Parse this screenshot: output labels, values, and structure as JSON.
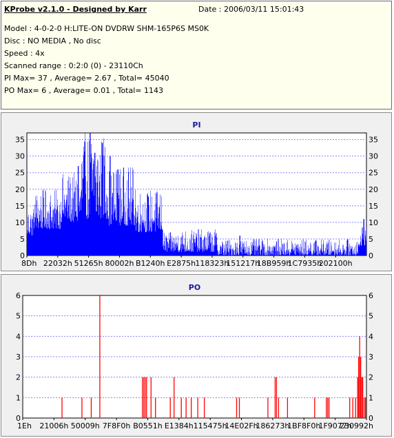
{
  "header": {
    "title": "KProbe v2.1.0 - Designed by Karr",
    "date": "Date : 2006/03/11 15:01:43",
    "model": "Model : 4-0-2-0 H:LITE-ON DVDRW SHM-165P6S MS0K",
    "disc": "Disc : NO MEDIA , No disc",
    "speed": "Speed : 4x",
    "scanned_range": "Scanned range : 0:2:0 (0) - 23110Ch",
    "pi_stats": "PI Max= 37 , Average= 2.67 , Total= 45040",
    "po_stats": "PO Max= 6 , Average= 0.01 , Total= 1143"
  },
  "colors": {
    "pi_series": "#0000ff",
    "po_series": "#ff0000",
    "plot_background": "#ffffff",
    "grid": "#8080ff",
    "title": "#1818a0"
  },
  "chart_data": [
    {
      "type": "bar",
      "title": "PI",
      "xlabel": "",
      "ylabel": "",
      "ylim": [
        0,
        37
      ],
      "yticks": [
        0,
        5,
        10,
        15,
        20,
        25,
        30,
        35
      ],
      "right_axis": true,
      "grid": "horizontal dashed",
      "xticks": [
        "8Dh",
        "22032h",
        "51265h",
        "80002h",
        "B1240h",
        "E2875h",
        "118323h",
        "151217h",
        "18B959h",
        "1C7935h",
        "202100h"
      ],
      "x_range": [
        0,
        230992
      ],
      "max": 37,
      "average": 2.67,
      "total": 45040,
      "profile": [
        {
          "from": 0,
          "to": 2,
          "low": 6,
          "high": 15
        },
        {
          "from": 2,
          "to": 10,
          "low": 8,
          "high": 20
        },
        {
          "from": 10,
          "to": 16,
          "low": 10,
          "high": 25
        },
        {
          "from": 16,
          "to": 24,
          "low": 11,
          "high": 37
        },
        {
          "from": 24,
          "to": 32,
          "low": 9,
          "high": 27
        },
        {
          "from": 32,
          "to": 40,
          "low": 7,
          "high": 20
        },
        {
          "from": 40,
          "to": 44,
          "low": 1,
          "high": 7
        },
        {
          "from": 44,
          "to": 56,
          "low": 1,
          "high": 8
        },
        {
          "from": 56,
          "to": 98,
          "low": 0,
          "high": 5
        },
        {
          "from": 98,
          "to": 100,
          "low": 3,
          "high": 10
        }
      ],
      "spikes": [
        {
          "x": 18.6,
          "y": 37
        },
        {
          "x": 22.2,
          "y": 34
        },
        {
          "x": 20.0,
          "y": 31
        },
        {
          "x": 24.5,
          "y": 30
        },
        {
          "x": 15.1,
          "y": 27
        },
        {
          "x": 26.8,
          "y": 26
        },
        {
          "x": 17.2,
          "y": 24
        },
        {
          "x": 34.0,
          "y": 10
        },
        {
          "x": 34.3,
          "y": 9
        },
        {
          "x": 62.7,
          "y": 6
        },
        {
          "x": 99.2,
          "y": 11
        }
      ]
    },
    {
      "type": "bar",
      "title": "PO",
      "xlabel": "",
      "ylabel": "",
      "ylim": [
        0,
        6
      ],
      "yticks": [
        0,
        1,
        2,
        3,
        4,
        5,
        6
      ],
      "right_axis": true,
      "grid": "horizontal dashed",
      "xticks": [
        "1Eh",
        "21006h",
        "50009h",
        "7F8F0h",
        "B0551h",
        "E1384h",
        "115475h",
        "14E02Fh",
        "186273h",
        "1BF8F0h",
        "1F9077h",
        "230992h"
      ],
      "x_range": [
        0,
        230992
      ],
      "max": 6,
      "average": 0.01,
      "total": 1143,
      "spikes": [
        {
          "x": 11.4,
          "y": 1
        },
        {
          "x": 17.2,
          "y": 1
        },
        {
          "x": 19.9,
          "y": 1
        },
        {
          "x": 22.4,
          "y": 6
        },
        {
          "x": 34.8,
          "y": 2
        },
        {
          "x": 35.2,
          "y": 2
        },
        {
          "x": 35.6,
          "y": 2
        },
        {
          "x": 36.0,
          "y": 2
        },
        {
          "x": 37.3,
          "y": 2
        },
        {
          "x": 38.6,
          "y": 1
        },
        {
          "x": 42.9,
          "y": 1
        },
        {
          "x": 44.0,
          "y": 2
        },
        {
          "x": 46.1,
          "y": 1
        },
        {
          "x": 47.5,
          "y": 1
        },
        {
          "x": 49.0,
          "y": 1
        },
        {
          "x": 50.9,
          "y": 1
        },
        {
          "x": 52.8,
          "y": 1
        },
        {
          "x": 62.2,
          "y": 1
        },
        {
          "x": 63.0,
          "y": 1
        },
        {
          "x": 71.3,
          "y": 1
        },
        {
          "x": 73.4,
          "y": 2
        },
        {
          "x": 73.8,
          "y": 2
        },
        {
          "x": 74.4,
          "y": 1
        },
        {
          "x": 77.0,
          "y": 1
        },
        {
          "x": 84.9,
          "y": 1
        },
        {
          "x": 88.3,
          "y": 1
        },
        {
          "x": 88.7,
          "y": 1
        },
        {
          "x": 89.1,
          "y": 1
        },
        {
          "x": 95.1,
          "y": 1
        },
        {
          "x": 96.0,
          "y": 1
        },
        {
          "x": 96.8,
          "y": 1
        },
        {
          "x": 97.4,
          "y": 2
        },
        {
          "x": 97.7,
          "y": 3
        },
        {
          "x": 98.0,
          "y": 4
        },
        {
          "x": 98.3,
          "y": 3
        },
        {
          "x": 98.6,
          "y": 2
        },
        {
          "x": 98.9,
          "y": 2
        },
        {
          "x": 99.3,
          "y": 1
        },
        {
          "x": 99.7,
          "y": 1
        }
      ]
    }
  ]
}
